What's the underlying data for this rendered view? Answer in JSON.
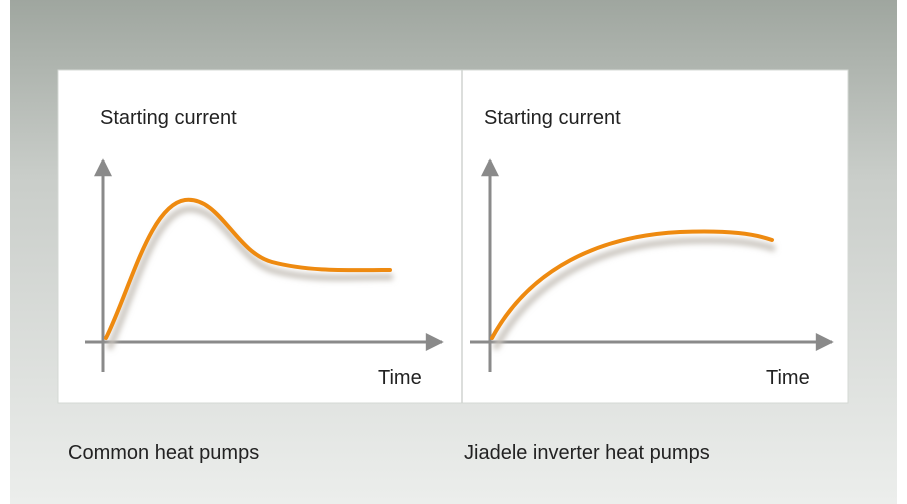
{
  "panels": [
    {
      "y_axis_label": "Starting current",
      "x_axis_label": "Time",
      "caption": "Common heat pumps"
    },
    {
      "y_axis_label": "Starting current",
      "x_axis_label": "Time",
      "caption": "Jiadele inverter heat pumps"
    }
  ]
}
